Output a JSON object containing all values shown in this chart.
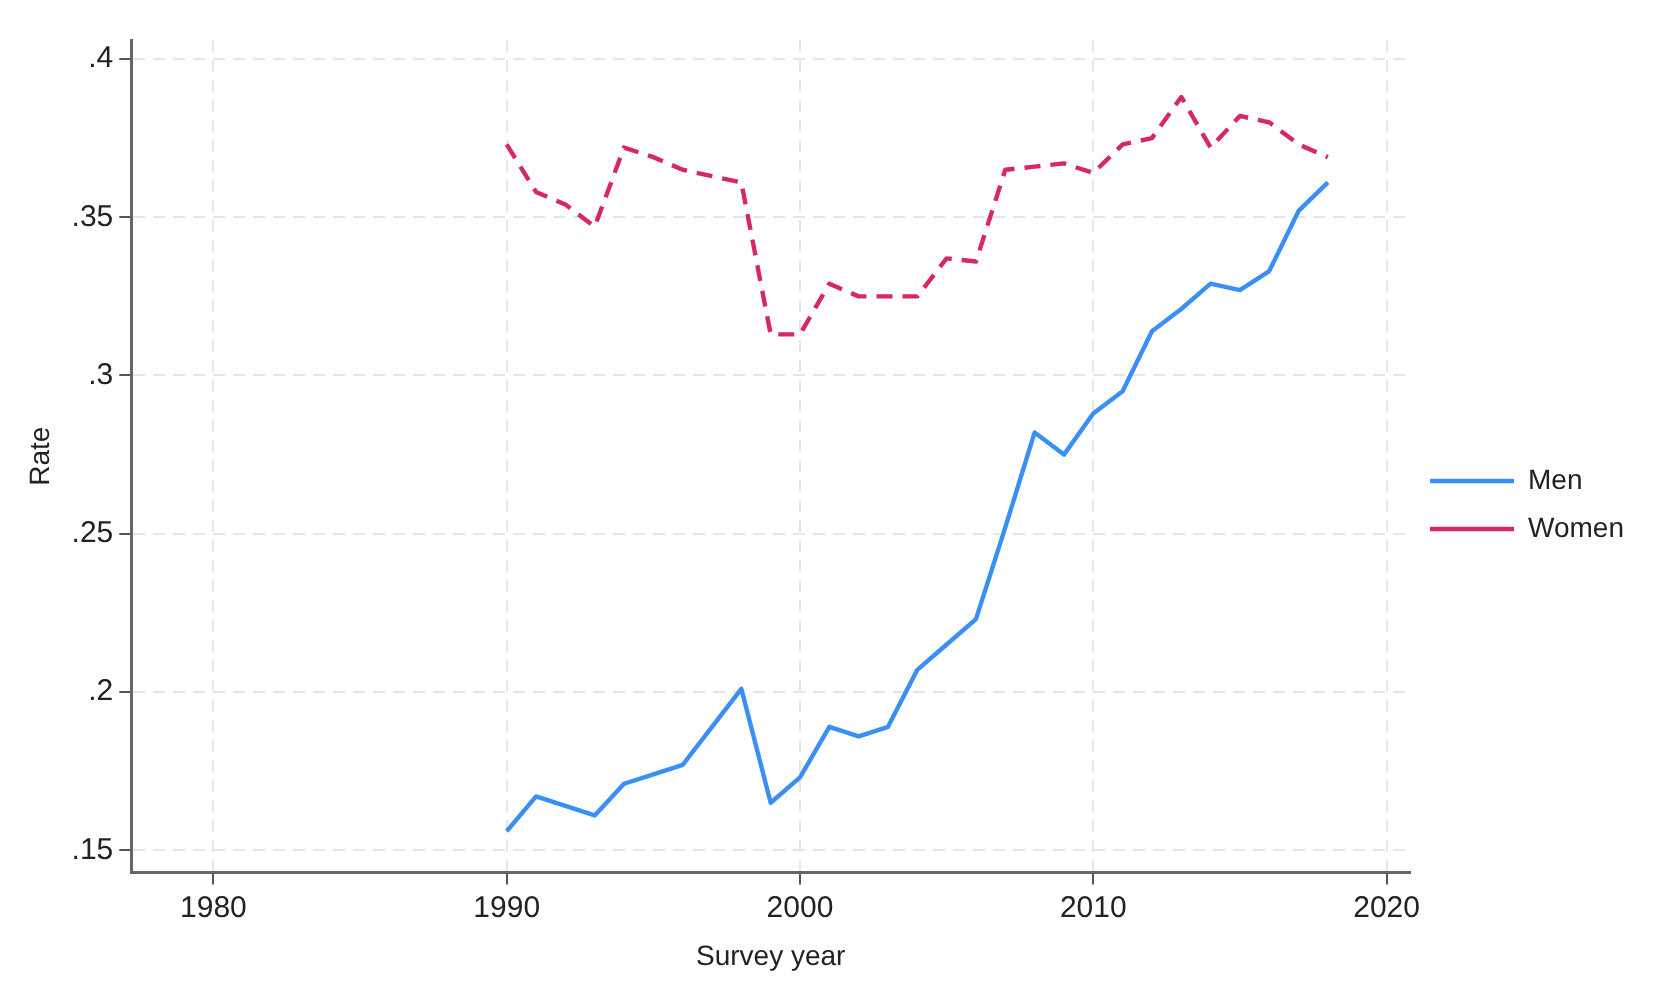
{
  "chart_data": {
    "type": "line",
    "xlabel": "Survey year",
    "ylabel": "Rate",
    "x": [
      1990,
      1991,
      1992,
      1993,
      1994,
      1995,
      1996,
      1997,
      1998,
      1999,
      2000,
      2001,
      2002,
      2003,
      2004,
      2005,
      2006,
      2007,
      2008,
      2009,
      2010,
      2011,
      2012,
      2013,
      2014,
      2015,
      2016,
      2017,
      2018
    ],
    "series": [
      {
        "name": "Men",
        "color": "#3a8ff7",
        "line_style": "solid",
        "values": [
          0.156,
          0.167,
          0.164,
          0.161,
          0.171,
          0.174,
          0.177,
          0.189,
          0.201,
          0.165,
          0.173,
          0.189,
          0.186,
          0.189,
          0.207,
          0.215,
          0.223,
          0.252,
          0.282,
          0.275,
          0.288,
          0.295,
          0.314,
          0.321,
          0.329,
          0.327,
          0.333,
          0.352,
          0.361
        ]
      },
      {
        "name": "Women",
        "color": "#d62a5e",
        "line_style": "dashed",
        "values": [
          0.373,
          0.358,
          0.354,
          0.347,
          0.372,
          0.369,
          0.365,
          0.363,
          0.361,
          0.313,
          0.313,
          0.329,
          0.325,
          0.325,
          0.325,
          0.337,
          0.336,
          0.365,
          0.366,
          0.367,
          0.364,
          0.373,
          0.375,
          0.388,
          0.372,
          0.382,
          0.38,
          0.373,
          0.369
        ]
      }
    ],
    "xlim": [
      1977.2,
      2020.8
    ],
    "ylim": [
      0.143,
      0.406
    ],
    "xticks": [
      1980,
      1990,
      2000,
      2010,
      2020
    ],
    "yticks": [
      {
        "value": 0.15,
        "label": ".15"
      },
      {
        "value": 0.2,
        "label": ".2"
      },
      {
        "value": 0.25,
        "label": ".25"
      },
      {
        "value": 0.3,
        "label": ".3"
      },
      {
        "value": 0.35,
        "label": ".35"
      },
      {
        "value": 0.4,
        "label": ".4"
      }
    ],
    "grid": true,
    "legend": "right",
    "marker": "none"
  }
}
